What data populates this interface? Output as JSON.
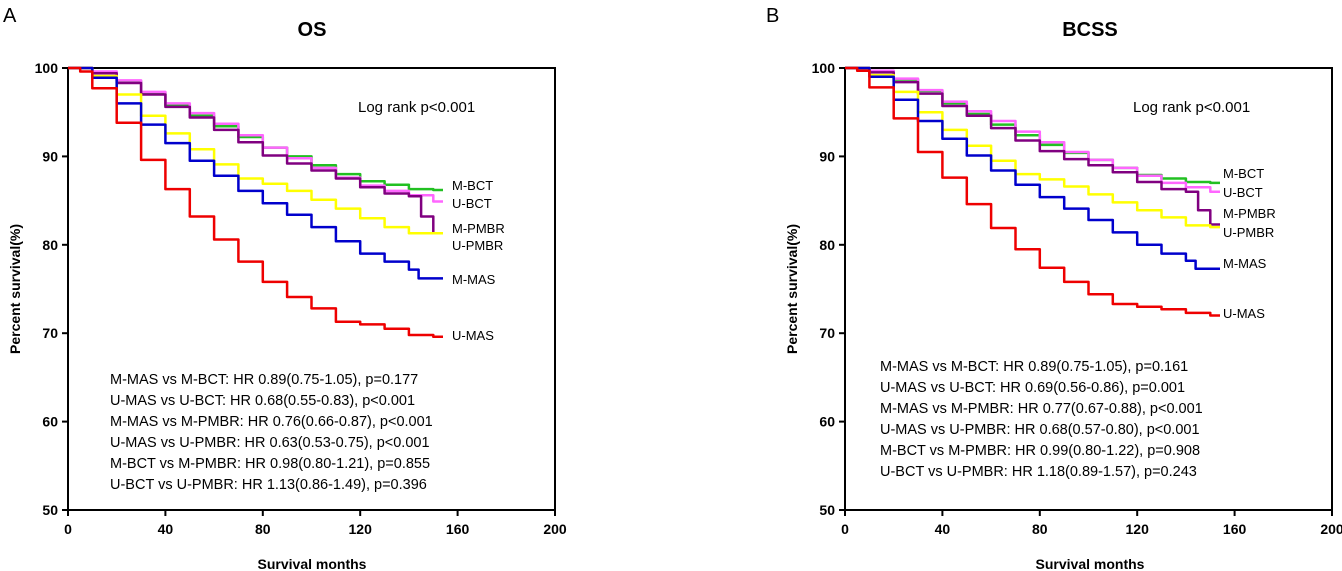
{
  "figure": {
    "panels": [
      {
        "letter": "A",
        "title": "OS",
        "ylabel": "Percent survival(%)",
        "xlabel": "Survival months",
        "note": "Log rank p<0.001",
        "stats": [
          "M-MAS vs M-BCT: HR 0.89(0.75-1.05), p=0.177",
          "U-MAS vs U-BCT: HR 0.68(0.55-0.83), p<0.001",
          "M-MAS vs M-PMBR: HR 0.76(0.66-0.87), p<0.001",
          "U-MAS vs U-PMBR: HR 0.63(0.53-0.75), p<0.001",
          "M-BCT vs M-PMBR: HR 0.98(0.80-1.21), p=0.855",
          "U-BCT vs U-PMBR: HR 1.13(0.86-1.49), p=0.396"
        ]
      },
      {
        "letter": "B",
        "title": "BCSS",
        "ylabel": "Percent survival(%)",
        "xlabel": "Survival months",
        "note": "Log rank p<0.001",
        "stats": [
          "M-MAS vs M-BCT: HR 0.89(0.75-1.05), p=0.161",
          "U-MAS vs U-BCT: HR 0.69(0.56-0.86), p=0.001",
          "M-MAS vs M-PMBR: HR 0.77(0.67-0.88), p<0.001",
          "U-MAS vs U-PMBR: HR 0.68(0.57-0.80), p<0.001",
          "M-BCT vs M-PMBR: HR 0.99(0.80-1.22), p=0.908",
          "U-BCT vs U-PMBR: HR 1.18(0.89-1.57), p=0.243"
        ]
      }
    ]
  },
  "chart_data": [
    {
      "type": "line",
      "title": "OS",
      "xlabel": "Survival months",
      "ylabel": "Percent survival(%)",
      "xlim": [
        0,
        200
      ],
      "ylim": [
        50,
        100
      ],
      "xticks": [
        0,
        40,
        80,
        120,
        160,
        200
      ],
      "yticks": [
        50,
        60,
        70,
        80,
        90,
        100
      ],
      "series": [
        {
          "name": "M-BCT",
          "color": "#22c022",
          "x": [
            0,
            10,
            20,
            30,
            40,
            50,
            60,
            70,
            80,
            90,
            100,
            110,
            120,
            130,
            140,
            150,
            154
          ],
          "values": [
            100,
            99.5,
            98.5,
            97.2,
            95.8,
            94.6,
            93.4,
            92.2,
            91.0,
            90.0,
            89.0,
            88.0,
            87.2,
            86.8,
            86.3,
            86.2,
            86.2
          ]
        },
        {
          "name": "U-BCT",
          "color": "#ff66ff",
          "x": [
            0,
            10,
            20,
            30,
            40,
            50,
            60,
            70,
            80,
            90,
            100,
            110,
            120,
            130,
            140,
            150,
            154
          ],
          "values": [
            100,
            99.6,
            98.6,
            97.3,
            96.0,
            94.9,
            93.7,
            92.4,
            91.0,
            89.8,
            88.7,
            87.6,
            86.7,
            86.1,
            85.6,
            84.9,
            84.9
          ]
        },
        {
          "name": "M-PMBR",
          "color": "#800080",
          "x": [
            0,
            10,
            20,
            30,
            40,
            50,
            60,
            70,
            80,
            90,
            100,
            110,
            120,
            130,
            140,
            145,
            150,
            154
          ],
          "values": [
            100,
            99.4,
            98.3,
            97.0,
            95.6,
            94.4,
            93.0,
            91.6,
            90.1,
            89.2,
            88.4,
            87.5,
            86.5,
            85.8,
            85.5,
            83.2,
            81.3,
            81.3
          ]
        },
        {
          "name": "U-PMBR",
          "color": "#ffff00",
          "x": [
            0,
            10,
            20,
            30,
            40,
            50,
            60,
            70,
            80,
            90,
            100,
            110,
            120,
            130,
            140,
            150,
            154
          ],
          "values": [
            100,
            99.1,
            97.0,
            94.6,
            92.6,
            90.8,
            89.1,
            87.5,
            86.9,
            86.1,
            85.1,
            84.1,
            83.0,
            82.0,
            81.3,
            81.3,
            81.3
          ]
        },
        {
          "name": "M-MAS",
          "color": "#0000cc",
          "x": [
            0,
            10,
            20,
            30,
            40,
            50,
            60,
            70,
            80,
            90,
            100,
            110,
            120,
            130,
            140,
            144,
            154
          ],
          "values": [
            100,
            98.9,
            96.0,
            93.6,
            91.5,
            89.5,
            87.8,
            86.1,
            84.7,
            83.4,
            82.0,
            80.4,
            79.0,
            78.1,
            77.2,
            76.2,
            76.2
          ]
        },
        {
          "name": "U-MAS",
          "color": "#ee0000",
          "x": [
            0,
            5,
            10,
            20,
            30,
            40,
            50,
            60,
            70,
            80,
            90,
            100,
            110,
            120,
            130,
            140,
            150,
            154
          ],
          "values": [
            100,
            99.6,
            97.7,
            93.8,
            89.6,
            86.3,
            83.2,
            80.6,
            78.1,
            75.8,
            74.1,
            72.8,
            71.3,
            71.0,
            70.5,
            69.8,
            69.6,
            69.6
          ]
        }
      ],
      "annotations": [
        "Log rank p<0.001"
      ]
    },
    {
      "type": "line",
      "title": "BCSS",
      "xlabel": "Survival months",
      "ylabel": "Percent survival(%)",
      "xlim": [
        0,
        200
      ],
      "ylim": [
        50,
        100
      ],
      "xticks": [
        0,
        40,
        80,
        120,
        160,
        200
      ],
      "yticks": [
        50,
        60,
        70,
        80,
        90,
        100
      ],
      "series": [
        {
          "name": "M-BCT",
          "color": "#22c022",
          "x": [
            0,
            10,
            20,
            30,
            40,
            50,
            60,
            70,
            80,
            90,
            100,
            110,
            120,
            130,
            140,
            150,
            154
          ],
          "values": [
            100,
            99.6,
            98.7,
            97.4,
            96.0,
            94.8,
            93.6,
            92.4,
            91.3,
            90.4,
            89.6,
            88.7,
            87.9,
            87.5,
            87.1,
            87.0,
            87.0
          ]
        },
        {
          "name": "U-BCT",
          "color": "#ff66ff",
          "x": [
            0,
            10,
            20,
            30,
            40,
            50,
            60,
            70,
            80,
            90,
            100,
            110,
            120,
            130,
            140,
            150,
            154
          ],
          "values": [
            100,
            99.7,
            98.8,
            97.5,
            96.2,
            95.1,
            94.0,
            92.8,
            91.6,
            90.5,
            89.6,
            88.7,
            87.8,
            87.0,
            86.5,
            86.0,
            86.0
          ]
        },
        {
          "name": "M-PMBR",
          "color": "#800080",
          "x": [
            0,
            10,
            20,
            30,
            40,
            50,
            60,
            70,
            80,
            90,
            100,
            110,
            120,
            130,
            140,
            145,
            150,
            154
          ],
          "values": [
            100,
            99.5,
            98.4,
            97.1,
            95.7,
            94.6,
            93.2,
            91.8,
            90.6,
            89.7,
            89.0,
            88.2,
            87.1,
            86.3,
            86.0,
            83.9,
            82.3,
            82.3
          ]
        },
        {
          "name": "U-PMBR",
          "color": "#ffff00",
          "x": [
            0,
            10,
            20,
            30,
            40,
            50,
            60,
            70,
            80,
            90,
            100,
            110,
            120,
            130,
            140,
            150,
            154
          ],
          "values": [
            100,
            99.2,
            97.3,
            95.0,
            93.0,
            91.2,
            89.5,
            88.0,
            87.4,
            86.6,
            85.7,
            84.8,
            83.9,
            83.1,
            82.2,
            82.0,
            82.0
          ]
        },
        {
          "name": "M-MAS",
          "color": "#0000cc",
          "x": [
            0,
            10,
            20,
            30,
            40,
            50,
            60,
            70,
            80,
            90,
            100,
            110,
            120,
            130,
            140,
            144,
            154
          ],
          "values": [
            100,
            99.0,
            96.4,
            94.0,
            92.0,
            90.1,
            88.4,
            86.8,
            85.4,
            84.1,
            82.8,
            81.4,
            80.0,
            79.0,
            78.2,
            77.3,
            77.3
          ]
        },
        {
          "name": "U-MAS",
          "color": "#ee0000",
          "x": [
            0,
            5,
            10,
            20,
            30,
            40,
            50,
            60,
            70,
            80,
            90,
            100,
            110,
            120,
            130,
            140,
            150,
            154
          ],
          "values": [
            100,
            99.7,
            97.8,
            94.3,
            90.5,
            87.6,
            84.6,
            81.9,
            79.5,
            77.4,
            75.8,
            74.4,
            73.3,
            73.0,
            72.7,
            72.3,
            72.0,
            72.0
          ]
        }
      ],
      "annotations": [
        "Log rank p<0.001"
      ]
    }
  ]
}
